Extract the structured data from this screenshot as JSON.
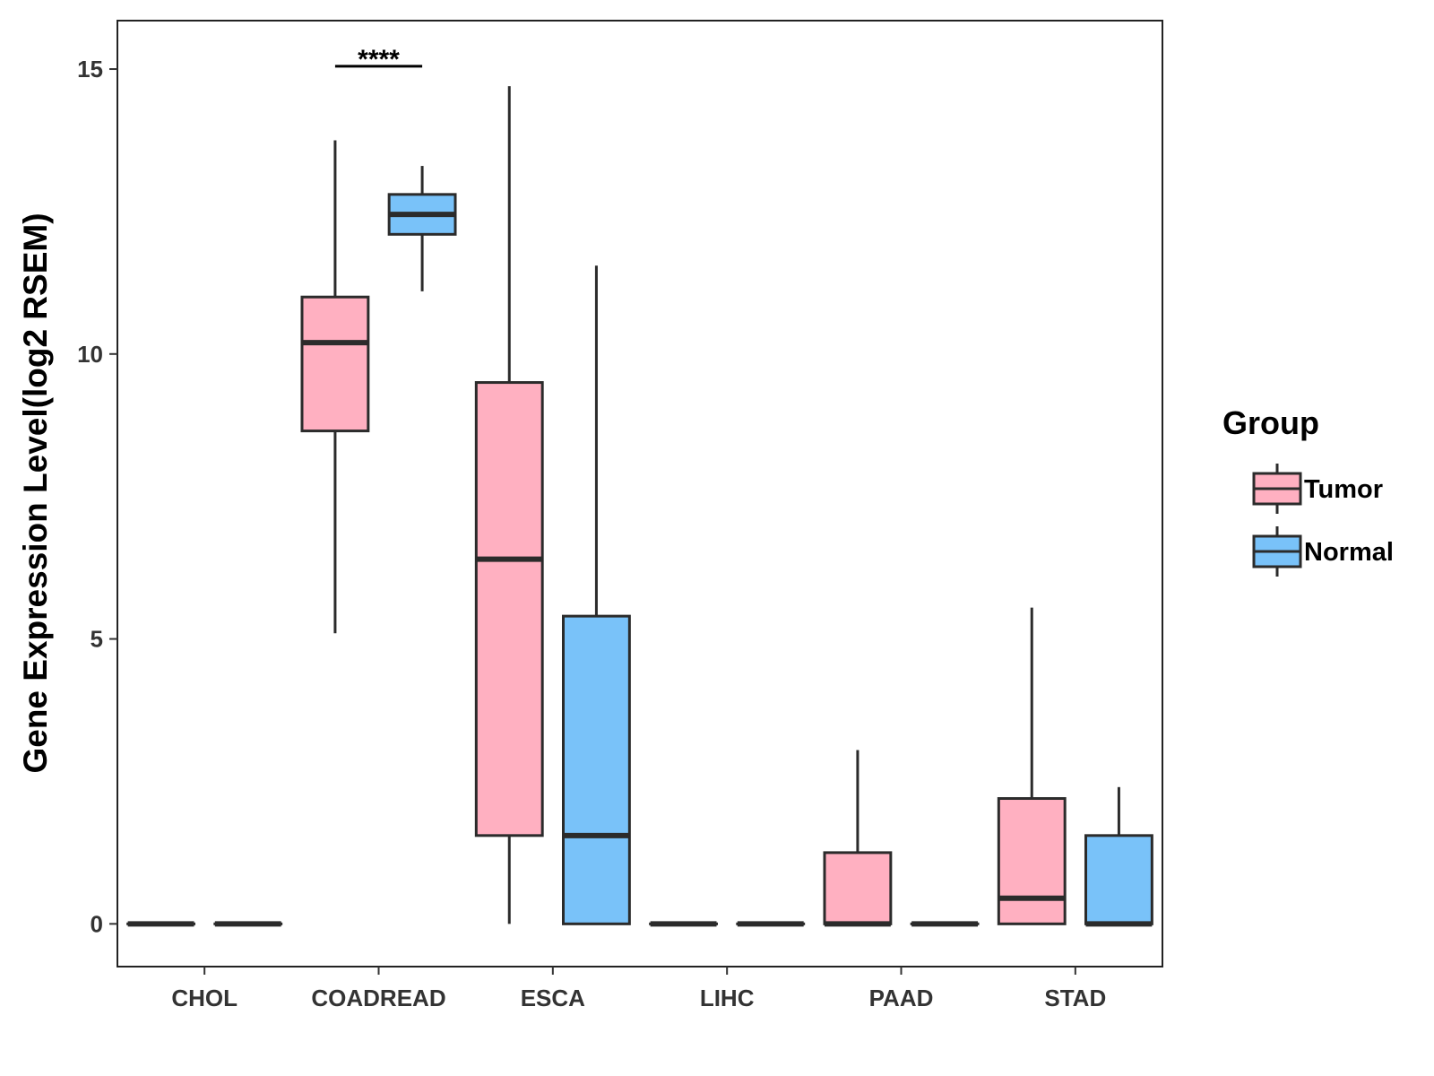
{
  "chart_data": {
    "type": "box",
    "title": "",
    "xlabel": "",
    "ylabel": "Gene Expression Level(log2 RSEM)",
    "ylim": [
      -0.75,
      15.85
    ],
    "yticks": [
      0,
      5,
      10,
      15
    ],
    "categories": [
      "CHOL",
      "COADREAD",
      "ESCA",
      "LIHC",
      "PAAD",
      "STAD"
    ],
    "legend": {
      "title": "Group",
      "position": "right"
    },
    "series": [
      {
        "name": "Tumor",
        "color": "#FFB0C1",
        "boxes": [
          {
            "category": "CHOL",
            "min": 0,
            "q1": 0,
            "median": 0,
            "q3": 0,
            "max": 0
          },
          {
            "category": "COADREAD",
            "min": 5.1,
            "q1": 8.65,
            "median": 10.2,
            "q3": 11.0,
            "max": 13.75
          },
          {
            "category": "ESCA",
            "min": 0,
            "q1": 1.55,
            "median": 6.4,
            "q3": 9.5,
            "max": 14.7
          },
          {
            "category": "LIHC",
            "min": 0,
            "q1": 0,
            "median": 0,
            "q3": 0,
            "max": 0
          },
          {
            "category": "PAAD",
            "min": 0,
            "q1": 0,
            "median": 0,
            "q3": 1.25,
            "max": 3.05
          },
          {
            "category": "STAD",
            "min": 0,
            "q1": 0,
            "median": 0.45,
            "q3": 2.2,
            "max": 5.55
          }
        ]
      },
      {
        "name": "Normal",
        "color": "#79C2F9",
        "boxes": [
          {
            "category": "CHOL",
            "min": 0,
            "q1": 0,
            "median": 0,
            "q3": 0,
            "max": 0
          },
          {
            "category": "COADREAD",
            "min": 11.1,
            "q1": 12.1,
            "median": 12.45,
            "q3": 12.8,
            "max": 13.3
          },
          {
            "category": "ESCA",
            "min": 0,
            "q1": 0,
            "median": 1.55,
            "q3": 5.4,
            "max": 11.55
          },
          {
            "category": "LIHC",
            "min": 0,
            "q1": 0,
            "median": 0,
            "q3": 0,
            "max": 0
          },
          {
            "category": "PAAD",
            "min": 0,
            "q1": 0,
            "median": 0,
            "q3": 0,
            "max": 0
          },
          {
            "category": "STAD",
            "min": 0,
            "q1": 0,
            "median": 0,
            "q3": 1.55,
            "max": 2.4
          }
        ]
      }
    ],
    "annotations": [
      {
        "category": "COADREAD",
        "text": "****",
        "y": 15.05
      }
    ]
  }
}
